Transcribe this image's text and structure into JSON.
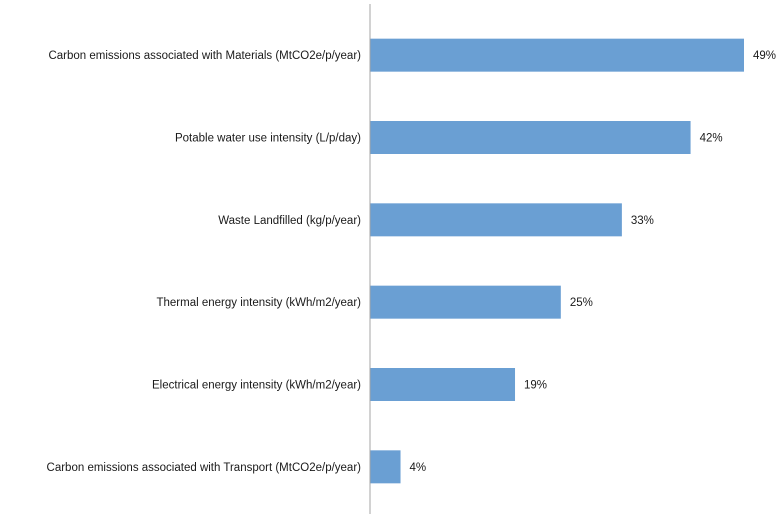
{
  "chart_data": {
    "type": "bar",
    "orientation": "horizontal",
    "categories": [
      "Carbon emissions associated with Materials (MtCO2e/p/year)",
      "Potable water use intensity (L/p/day)",
      "Waste Landfilled (kg/p/year)",
      "Thermal energy intensity (kWh/m2/year)",
      "Electrical energy intensity (kWh/m2/year)",
      "Carbon emissions associated with Transport (MtCO2e/p/year)"
    ],
    "values": [
      49,
      42,
      33,
      25,
      19,
      4
    ],
    "value_labels": [
      "49%",
      "42%",
      "33%",
      "25%",
      "19%",
      "4%"
    ],
    "xlim": [
      0,
      49
    ],
    "grid": false,
    "legend": "none",
    "colors": {
      "bar": "#6a9fd3",
      "axis": "#a6a6a6",
      "text": "#1a1a1a"
    }
  }
}
